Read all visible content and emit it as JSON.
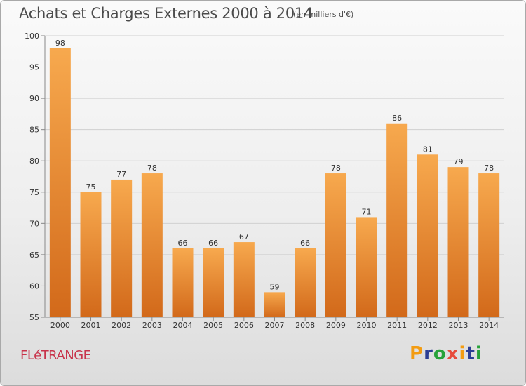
{
  "header": {
    "title": "Achats et Charges Externes 2000 à 2014",
    "subtitle": "(en milliers d'€)"
  },
  "footer": {
    "town": "FLéTRANGE",
    "logo_text": "Proxiti",
    "logo_letters": [
      {
        "char": "P",
        "color": "#f39c12"
      },
      {
        "char": "r",
        "color": "#2c3e94"
      },
      {
        "char": "o",
        "color": "#27a23a"
      },
      {
        "char": "x",
        "color": "#e74c3c"
      },
      {
        "char": "i",
        "color": "#f39c12"
      },
      {
        "char": "t",
        "color": "#2c3e94"
      },
      {
        "char": "i",
        "color": "#27a23a"
      }
    ]
  },
  "colors": {
    "bar_top": "#f7a94e",
    "bar_bottom": "#d2691a",
    "grid": "#d0d0d0",
    "axis": "#888888"
  },
  "chart_data": {
    "type": "bar",
    "title": "Achats et Charges Externes 2000 à 2014",
    "subtitle": "(en milliers d'€)",
    "categories": [
      "2000",
      "2001",
      "2002",
      "2003",
      "2004",
      "2005",
      "2006",
      "2007",
      "2008",
      "2009",
      "2010",
      "2011",
      "2012",
      "2013",
      "2014"
    ],
    "values": [
      98,
      75,
      77,
      78,
      66,
      66,
      67,
      59,
      66,
      78,
      71,
      86,
      81,
      79,
      78
    ],
    "yticks": [
      55,
      60,
      65,
      70,
      75,
      80,
      85,
      90,
      95,
      100
    ],
    "ylim": [
      55,
      100
    ],
    "grid": true,
    "data_labels": true
  }
}
